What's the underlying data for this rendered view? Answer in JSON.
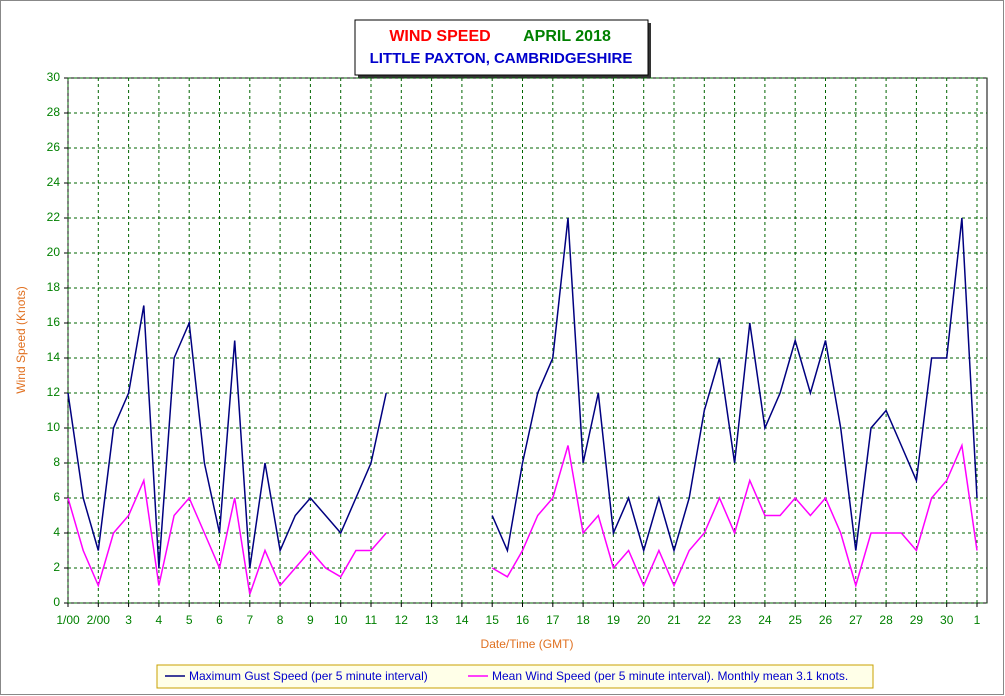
{
  "chart_data": {
    "type": "line",
    "title": "WIND SPEED",
    "title_month": "APRIL 2018",
    "subtitle": "LITTLE PAXTON, CAMBRIDGESHIRE",
    "y_label": "Wind Speed (Knots)",
    "x_label": "Date/Time (GMT)",
    "x": [
      1,
      1.5,
      2,
      2.5,
      3,
      3.5,
      4,
      4.5,
      5,
      5.5,
      6,
      6.5,
      7,
      7.5,
      8,
      8.5,
      9,
      9.5,
      10,
      10.5,
      11,
      11.5,
      12,
      12.5,
      13,
      13.5,
      14,
      14.5,
      15,
      15.5,
      16,
      16.5,
      17,
      17.5,
      18,
      18.5,
      19,
      19.5,
      20,
      20.5,
      21,
      21.5,
      22,
      22.5,
      23,
      23.5,
      24,
      24.5,
      25,
      25.5,
      26,
      26.5,
      27,
      27.5,
      28,
      28.5,
      29,
      29.5,
      30,
      30.5,
      31
    ],
    "series": [
      {
        "name": "Maximum Gust Speed (per 5 minute interval)",
        "color": "#000080",
        "values": [
          12,
          6,
          3,
          10,
          12,
          17,
          2,
          14,
          16,
          8,
          4,
          15,
          2,
          8,
          3,
          5,
          6,
          5,
          4,
          6,
          8,
          12,
          null,
          null,
          null,
          null,
          null,
          null,
          5,
          3,
          8,
          12,
          14,
          22,
          8,
          12,
          4,
          6,
          3,
          6,
          3,
          6,
          11,
          14,
          8,
          16,
          10,
          12,
          15,
          12,
          15,
          10,
          3,
          10,
          11,
          9,
          7,
          14,
          14,
          22,
          6
        ]
      },
      {
        "name": "Mean Wind Speed (per 5 minute interval). Monthly mean 3.1 knots.",
        "color": "#ff00ff",
        "values": [
          6,
          3,
          1,
          4,
          5,
          7,
          1,
          5,
          6,
          4,
          2,
          6,
          0.5,
          3,
          1,
          2,
          3,
          2,
          1.5,
          3,
          3,
          4,
          null,
          null,
          null,
          null,
          null,
          null,
          2,
          1.5,
          3,
          5,
          6,
          9,
          4,
          5,
          2,
          3,
          1,
          3,
          1,
          3,
          4,
          6,
          4,
          7,
          5,
          5,
          6,
          5,
          6,
          4,
          1,
          4,
          4,
          4,
          3,
          6,
          7,
          9,
          3
        ]
      }
    ],
    "xlim": [
      1,
      31.33
    ],
    "xticks": [
      {
        "value": 1,
        "label": "1/00"
      },
      {
        "value": 2,
        "label": "2/00"
      },
      3,
      4,
      5,
      6,
      7,
      8,
      9,
      10,
      11,
      12,
      13,
      14,
      15,
      16,
      17,
      18,
      19,
      20,
      21,
      22,
      23,
      24,
      25,
      26,
      27,
      28,
      29,
      30,
      {
        "value": 31,
        "label": "1"
      }
    ],
    "ylim": [
      0,
      30
    ],
    "yticks": [
      0,
      2,
      4,
      6,
      8,
      10,
      12,
      14,
      16,
      18,
      20,
      22,
      24,
      26,
      28,
      30
    ],
    "grid": true
  }
}
